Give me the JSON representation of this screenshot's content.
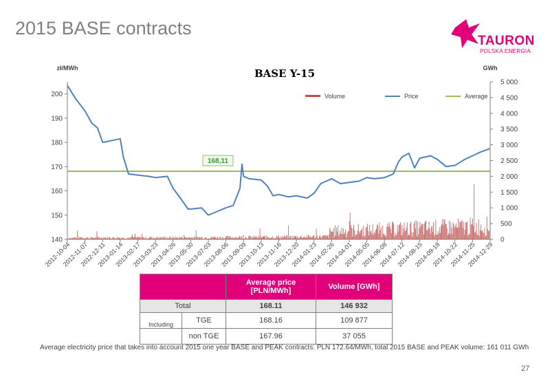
{
  "slide": {
    "title": "2015 BASE contracts",
    "page_number": "27"
  },
  "logo": {
    "name": "TAURON",
    "tagline": "POLSKA ENERGIA",
    "color": "#e2007a"
  },
  "chart_data": {
    "type": "bar+line",
    "title": "BASE   Y-15",
    "y_left_unit": "zł/MWh",
    "y_right_unit": "GWh",
    "y_left_ticks": [
      "200",
      "190",
      "180",
      "170",
      "160",
      "150",
      "140"
    ],
    "y_left_range": [
      140,
      205
    ],
    "y_right_ticks": [
      "5 000",
      "4 500",
      "4 000",
      "3 500",
      "3 000",
      "2 500",
      "2 000",
      "1 500",
      "1 000",
      "500",
      "0"
    ],
    "y_right_range": [
      0,
      5000
    ],
    "x_ticks": [
      "2012-10-04",
      "2012-11-07",
      "2012-12-11",
      "2013-01-14",
      "2013-02-17",
      "2013-03-23",
      "2013-04-26",
      "2013-05-30",
      "2013-07-03",
      "2013-08-06",
      "2013-09-09",
      "2013-10-13",
      "2013-11-16",
      "2013-12-20",
      "2014-01-23",
      "2014-02-26",
      "2014-04-01",
      "2014-05-05",
      "2014-06-08",
      "2014-07-12",
      "2014-08-15",
      "2014-09-18",
      "2014-10-22",
      "2014-11-25",
      "2014-12-29"
    ],
    "legend": [
      {
        "name": "Volume",
        "color": "#c0504d"
      },
      {
        "name": "Price",
        "color": "#4f81bd"
      },
      {
        "name": "Average",
        "color": "#9bbb59"
      }
    ],
    "average": {
      "value": 168.11,
      "label": "168,11"
    },
    "price_series": [
      {
        "x": "2012-10-04",
        "y": 203.5
      },
      {
        "x": "2012-10-20",
        "y": 198
      },
      {
        "x": "2012-11-07",
        "y": 193
      },
      {
        "x": "2012-11-20",
        "y": 188
      },
      {
        "x": "2012-12-01",
        "y": 186
      },
      {
        "x": "2012-12-11",
        "y": 180
      },
      {
        "x": "2013-01-14",
        "y": 181.5
      },
      {
        "x": "2013-01-20",
        "y": 174
      },
      {
        "x": "2013-01-30",
        "y": 167
      },
      {
        "x": "2013-02-17",
        "y": 166.5
      },
      {
        "x": "2013-03-10",
        "y": 166
      },
      {
        "x": "2013-03-23",
        "y": 165.5
      },
      {
        "x": "2013-04-15",
        "y": 166
      },
      {
        "x": "2013-04-26",
        "y": 161
      },
      {
        "x": "2013-05-10",
        "y": 157
      },
      {
        "x": "2013-05-25",
        "y": 152.5
      },
      {
        "x": "2013-05-30",
        "y": 152.5
      },
      {
        "x": "2013-06-20",
        "y": 153
      },
      {
        "x": "2013-07-03",
        "y": 150
      },
      {
        "x": "2013-07-20",
        "y": 151.5
      },
      {
        "x": "2013-08-06",
        "y": 153
      },
      {
        "x": "2013-08-20",
        "y": 154
      },
      {
        "x": "2013-09-02",
        "y": 161
      },
      {
        "x": "2013-09-06",
        "y": 171
      },
      {
        "x": "2013-09-09",
        "y": 166
      },
      {
        "x": "2013-09-20",
        "y": 165
      },
      {
        "x": "2013-10-13",
        "y": 164.5
      },
      {
        "x": "2013-10-25",
        "y": 162
      },
      {
        "x": "2013-11-05",
        "y": 158
      },
      {
        "x": "2013-11-16",
        "y": 158.5
      },
      {
        "x": "2013-12-05",
        "y": 157.5
      },
      {
        "x": "2013-12-20",
        "y": 158
      },
      {
        "x": "2014-01-10",
        "y": 157
      },
      {
        "x": "2014-01-23",
        "y": 159
      },
      {
        "x": "2014-02-05",
        "y": 163
      },
      {
        "x": "2014-02-26",
        "y": 165
      },
      {
        "x": "2014-03-15",
        "y": 163
      },
      {
        "x": "2014-04-01",
        "y": 163.5
      },
      {
        "x": "2014-04-20",
        "y": 164
      },
      {
        "x": "2014-05-05",
        "y": 165.5
      },
      {
        "x": "2014-05-20",
        "y": 165
      },
      {
        "x": "2014-06-08",
        "y": 165.5
      },
      {
        "x": "2014-06-25",
        "y": 167
      },
      {
        "x": "2014-07-05",
        "y": 172
      },
      {
        "x": "2014-07-12",
        "y": 174
      },
      {
        "x": "2014-07-25",
        "y": 175.5
      },
      {
        "x": "2014-08-05",
        "y": 169.5
      },
      {
        "x": "2014-08-15",
        "y": 173.5
      },
      {
        "x": "2014-09-05",
        "y": 174.5
      },
      {
        "x": "2014-09-18",
        "y": 173
      },
      {
        "x": "2014-10-05",
        "y": 170
      },
      {
        "x": "2014-10-22",
        "y": 170.5
      },
      {
        "x": "2014-11-10",
        "y": 173
      },
      {
        "x": "2014-11-25",
        "y": 174.5
      },
      {
        "x": "2014-12-10",
        "y": 176
      },
      {
        "x": "2014-12-29",
        "y": 177.5
      }
    ]
  },
  "table": {
    "headers": [
      "Average price [PLN/MWh]",
      "Volume [GWh]"
    ],
    "total": {
      "label": "Total",
      "price": "168.11",
      "volume": "146 932"
    },
    "group_label": "Including",
    "rows": [
      {
        "label": "TGE",
        "price": "168.16",
        "volume": "109 877"
      },
      {
        "label": "non TGE",
        "price": "167.96",
        "volume": "37 055"
      }
    ]
  },
  "footnote": "Average electricity price that takes into account 2015 one year BASE and PEAK contracts: PLN 172.64/MWh, total 2015 BASE and PEAK volume: 161 011 GWh"
}
